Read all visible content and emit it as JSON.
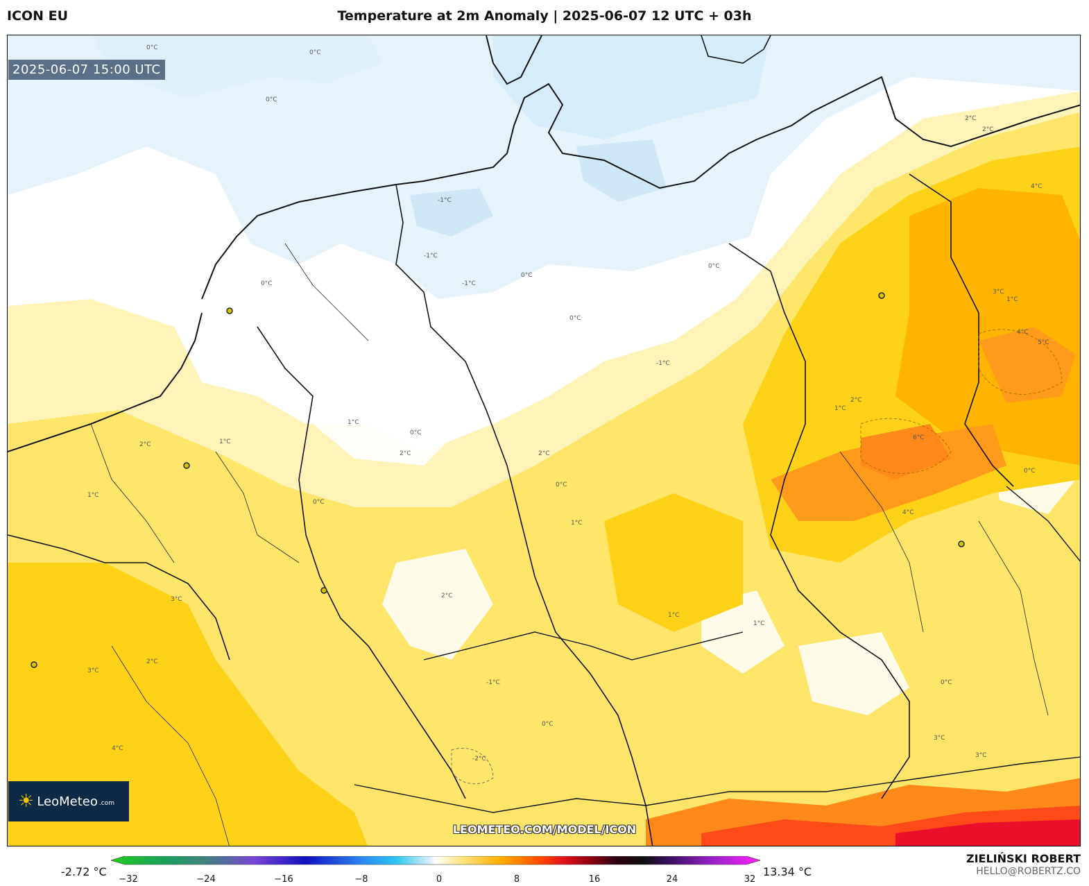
{
  "header": {
    "model": "ICON EU",
    "title": "Temperature at 2m Anomaly | 2025-06-07 12 UTC + 03h"
  },
  "map": {
    "valid_time": "2025-06-07 15:00 UTC",
    "watermark": "LEOMETEO.COM/MODEL/ICON",
    "logo_text": "LeoMeteo",
    "logo_suffix": ".com",
    "contour_labels": [
      {
        "text": "0°C",
        "pos": [
          200,
          20
        ]
      },
      {
        "text": "0°C",
        "pos": [
          435,
          27
        ]
      },
      {
        "text": "0°C",
        "pos": [
          372,
          95
        ]
      },
      {
        "text": "-1°C",
        "pos": [
          620,
          240
        ]
      },
      {
        "text": "-1°C",
        "pos": [
          600,
          320
        ]
      },
      {
        "text": "-1°C",
        "pos": [
          655,
          360
        ]
      },
      {
        "text": "0°C",
        "pos": [
          365,
          360
        ]
      },
      {
        "text": "0°C",
        "pos": [
          740,
          348
        ]
      },
      {
        "text": "0°C",
        "pos": [
          810,
          410
        ]
      },
      {
        "text": "0°C",
        "pos": [
          1010,
          335
        ]
      },
      {
        "text": "-1°C",
        "pos": [
          935,
          475
        ]
      },
      {
        "text": "2°C",
        "pos": [
          1380,
          122
        ]
      },
      {
        "text": "2°C",
        "pos": [
          1405,
          138
        ]
      },
      {
        "text": "4°C",
        "pos": [
          1475,
          220
        ]
      },
      {
        "text": "3°C",
        "pos": [
          1420,
          372
        ]
      },
      {
        "text": "1°C",
        "pos": [
          1440,
          383
        ]
      },
      {
        "text": "4°C",
        "pos": [
          1455,
          430
        ]
      },
      {
        "text": "5°C",
        "pos": [
          1485,
          445
        ]
      },
      {
        "text": "6°C",
        "pos": [
          1305,
          582
        ]
      },
      {
        "text": "2°C",
        "pos": [
          1215,
          528
        ]
      },
      {
        "text": "1°C",
        "pos": [
          1192,
          540
        ]
      },
      {
        "text": "1°C",
        "pos": [
          490,
          560
        ]
      },
      {
        "text": "0°C",
        "pos": [
          580,
          575
        ]
      },
      {
        "text": "2°C",
        "pos": [
          565,
          605
        ]
      },
      {
        "text": "2°C",
        "pos": [
          190,
          592
        ]
      },
      {
        "text": "1°C",
        "pos": [
          305,
          588
        ]
      },
      {
        "text": "1°C",
        "pos": [
          115,
          665
        ]
      },
      {
        "text": "0°C",
        "pos": [
          440,
          675
        ]
      },
      {
        "text": "0°C",
        "pos": [
          790,
          650
        ]
      },
      {
        "text": "2°C",
        "pos": [
          765,
          605
        ]
      },
      {
        "text": "1°C",
        "pos": [
          812,
          705
        ]
      },
      {
        "text": "2°C",
        "pos": [
          625,
          810
        ]
      },
      {
        "text": "1°C",
        "pos": [
          952,
          838
        ]
      },
      {
        "text": "1°C",
        "pos": [
          1075,
          850
        ]
      },
      {
        "text": "3°C",
        "pos": [
          235,
          815
        ]
      },
      {
        "text": "2°C",
        "pos": [
          200,
          905
        ]
      },
      {
        "text": "3°C",
        "pos": [
          115,
          918
        ]
      },
      {
        "text": "4°C",
        "pos": [
          150,
          1030
        ]
      },
      {
        "text": "-1°C",
        "pos": [
          690,
          935
        ]
      },
      {
        "text": "0°C",
        "pos": [
          770,
          995
        ]
      },
      {
        "text": "-2°C",
        "pos": [
          670,
          1045
        ]
      },
      {
        "text": "0°C",
        "pos": [
          1345,
          935
        ]
      },
      {
        "text": "0°C",
        "pos": [
          1465,
          630
        ]
      },
      {
        "text": "4°C",
        "pos": [
          1290,
          690
        ]
      },
      {
        "text": "3°C",
        "pos": [
          1335,
          1015
        ]
      },
      {
        "text": "3°C",
        "pos": [
          1395,
          1040
        ]
      }
    ],
    "city_markers": [
      {
        "pos": [
          320,
          397
        ]
      },
      {
        "pos": [
          258,
          620
        ]
      },
      {
        "pos": [
          456,
          800
        ]
      },
      {
        "pos": [
          38,
          907
        ]
      },
      {
        "pos": [
          1260,
          375
        ]
      },
      {
        "pos": [
          1375,
          733
        ]
      }
    ]
  },
  "colorbar": {
    "min_label": "-2.72 °C",
    "max_label": "13.34 °C",
    "ticks": [
      "−32",
      "−24",
      "−16",
      "−8",
      "0",
      "8",
      "16",
      "24",
      "32"
    ]
  },
  "credits": {
    "author": "ZIELIŃSKI ROBERT",
    "email": "HELLO@ROBERTZ.CO"
  }
}
